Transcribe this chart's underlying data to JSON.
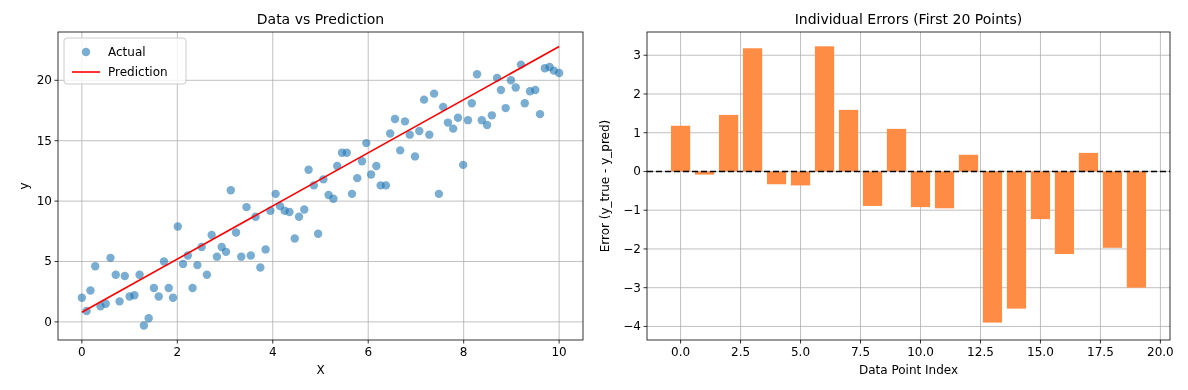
{
  "chart_data": [
    {
      "type": "scatter",
      "title": "Data vs Prediction",
      "xlabel": "X",
      "ylabel": "y",
      "xlim": [
        -0.5,
        10.5
      ],
      "ylim": [
        -1.5,
        24
      ],
      "xticks": [
        0,
        2,
        4,
        6,
        8,
        10
      ],
      "yticks": [
        0,
        5,
        10,
        15,
        20
      ],
      "grid": true,
      "legend": "top left",
      "series": [
        {
          "name": "Actual",
          "marker": "circle",
          "color": "#1f77b4",
          "x": [
            0,
            0.1,
            0.18,
            0.28,
            0.39,
            0.5,
            0.6,
            0.71,
            0.79,
            0.9,
            1.0,
            1.1,
            1.21,
            1.3,
            1.4,
            1.51,
            1.61,
            1.72,
            1.82,
            1.91,
            2.01,
            2.12,
            2.22,
            2.32,
            2.42,
            2.51,
            2.62,
            2.72,
            2.83,
            2.93,
            3.02,
            3.12,
            3.23,
            3.34,
            3.45,
            3.54,
            3.64,
            3.74,
            3.85,
            3.95,
            4.06,
            4.15,
            4.25,
            4.35,
            4.46,
            4.55,
            4.66,
            4.75,
            4.86,
            4.95,
            5.06,
            5.17,
            5.27,
            5.35,
            5.45,
            5.55,
            5.66,
            5.77,
            5.87,
            5.96,
            6.06,
            6.17,
            6.26,
            6.37,
            6.46,
            6.56,
            6.67,
            6.77,
            6.87,
            6.98,
            7.07,
            7.17,
            7.28,
            7.38,
            7.48,
            7.57,
            7.67,
            7.78,
            7.88,
            7.99,
            8.09,
            8.17,
            8.28,
            8.38,
            8.49,
            8.59,
            8.7,
            8.78,
            8.88,
            8.99,
            9.09,
            9.2,
            9.28,
            9.39,
            9.5,
            9.6,
            9.7,
            9.8,
            9.89,
            10
          ],
          "values": [
            2.0,
            0.9,
            2.6,
            4.6,
            1.3,
            1.5,
            5.3,
            3.9,
            1.7,
            3.8,
            2.1,
            2.2,
            3.9,
            -0.3,
            0.3,
            2.8,
            2.1,
            5.0,
            2.8,
            2.0,
            7.9,
            4.8,
            5.5,
            2.8,
            4.7,
            6.2,
            3.9,
            7.2,
            5.4,
            6.2,
            5.8,
            10.9,
            7.4,
            5.4,
            9.5,
            5.5,
            8.7,
            4.5,
            6.0,
            9.2,
            10.6,
            9.6,
            9.2,
            9.1,
            6.9,
            8.7,
            9.3,
            12.6,
            11.3,
            7.3,
            11.8,
            10.5,
            10.2,
            12.9,
            14.0,
            14.0,
            10.6,
            11.9,
            13.3,
            14.8,
            12.2,
            12.9,
            11.3,
            11.3,
            15.6,
            16.8,
            14.2,
            16.6,
            15.5,
            13.7,
            15.8,
            18.4,
            15.5,
            18.9,
            10.6,
            17.8,
            16.5,
            16.0,
            16.9,
            13.0,
            16.7,
            18.1,
            20.5,
            16.7,
            16.3,
            17.1,
            20.2,
            19.2,
            17.7,
            20.0,
            19.4,
            21.3,
            18.1,
            19.1,
            19.2,
            17.2,
            21.0,
            21.1,
            20.8,
            20.6
          ]
        },
        {
          "name": "Prediction",
          "type": "line",
          "color": "#ff0000",
          "x": [
            0,
            10
          ],
          "values": [
            0.8,
            22.8
          ]
        }
      ]
    },
    {
      "type": "bar",
      "title": "Individual Errors (First 20 Points)",
      "xlabel": "Data Point Index",
      "ylabel": "Error (y_true - y_pred)",
      "x": [
        0,
        1,
        2,
        3,
        4,
        5,
        6,
        7,
        8,
        9,
        10,
        11,
        12,
        13,
        14,
        15,
        16,
        17,
        18,
        19
      ],
      "values": [
        1.18,
        -0.08,
        1.46,
        3.18,
        -0.33,
        -0.36,
        3.23,
        1.59,
        -0.89,
        1.1,
        -0.92,
        -0.95,
        0.43,
        -3.9,
        -3.54,
        -1.23,
        -2.13,
        0.48,
        -1.97,
        -3.0
      ],
      "color": "#ff8c45",
      "xlim": [
        -1.4,
        20.4
      ],
      "ylim": [
        -4.35,
        3.6
      ],
      "xticks": [
        {
          "value": 0,
          "label": "0.0"
        },
        {
          "value": 2.5,
          "label": "2.5"
        },
        {
          "value": 5,
          "label": "5.0"
        },
        {
          "value": 7.5,
          "label": "7.5"
        },
        {
          "value": 10,
          "label": "10.0"
        },
        {
          "value": 12.5,
          "label": "12.5"
        },
        {
          "value": 15,
          "label": "15.0"
        },
        {
          "value": 17.5,
          "label": "17.5"
        },
        {
          "value": 20,
          "label": "20.0"
        }
      ],
      "yticks": [
        -4,
        -3,
        -2,
        -1,
        0,
        1,
        2,
        3
      ],
      "grid": true,
      "ref_lines": [
        {
          "axis": "y",
          "value": 0,
          "color": "#000000",
          "line_style": "dashed"
        }
      ]
    }
  ]
}
